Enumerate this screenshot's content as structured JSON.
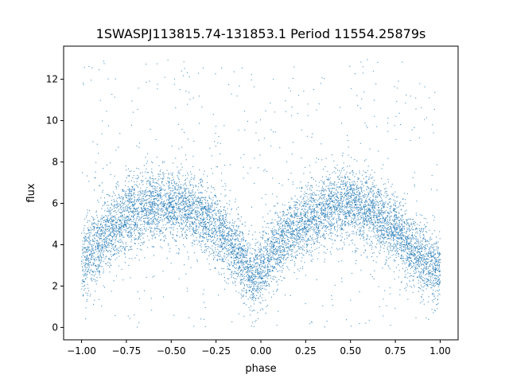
{
  "chart_data": {
    "type": "scatter",
    "title": "1SWASPJ113815.74-131853.1 Period 11554.25879s",
    "xlabel": "phase",
    "ylabel": "flux",
    "xlim": [
      -1.1,
      1.1
    ],
    "ylim": [
      -0.6,
      13.6
    ],
    "xticks": [
      -1.0,
      -0.75,
      -0.5,
      -0.25,
      0.0,
      0.25,
      0.5,
      0.75,
      1.0
    ],
    "xtick_labels": [
      "−1.00",
      "−0.75",
      "−0.50",
      "−0.25",
      "0.00",
      "0.25",
      "0.50",
      "0.75",
      "1.00"
    ],
    "yticks": [
      0,
      2,
      4,
      6,
      8,
      10,
      12
    ],
    "ytick_labels": [
      "0",
      "2",
      "4",
      "6",
      "8",
      "10",
      "12"
    ],
    "grid": false,
    "marker_color": "#1f77b4",
    "series": [
      {
        "phase_range": [
          -1.0,
          1.0
        ],
        "trend": {
          "x": [
            -1.0,
            -0.9,
            -0.75,
            -0.6,
            -0.5,
            -0.35,
            -0.2,
            -0.1,
            -0.05,
            0.0,
            0.1,
            0.25,
            0.4,
            0.5,
            0.65,
            0.8,
            0.9,
            1.0
          ],
          "y": [
            3.0,
            4.3,
            5.4,
            6.0,
            6.0,
            5.5,
            4.5,
            3.2,
            2.4,
            2.7,
            4.0,
            5.2,
            5.9,
            6.0,
            5.4,
            4.3,
            3.3,
            2.7
          ]
        },
        "outlier_range": [
          0,
          13
        ]
      }
    ]
  }
}
